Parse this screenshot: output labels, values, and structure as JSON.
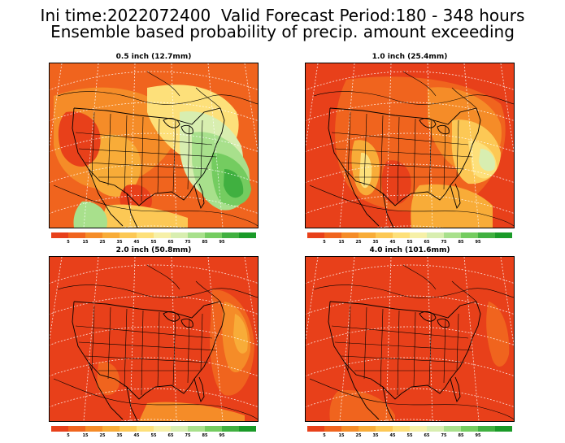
{
  "header": {
    "line1": "Ini time:2022072400  Valid Forecast Period:180 - 348 hours",
    "line2": "Ensemble based probability of precip. amount exceeding"
  },
  "panels": [
    {
      "title": "0.5 inch (12.7mm)",
      "dominant_color": "#e85a1c",
      "green_coverage": "high"
    },
    {
      "title": "1.0 inch (25.4mm)",
      "dominant_color": "#e84a18",
      "green_coverage": "low"
    },
    {
      "title": "2.0 inch (50.8mm)",
      "dominant_color": "#e8401a",
      "green_coverage": "none"
    },
    {
      "title": "4.0 inch (101.6mm)",
      "dominant_color": "#e8401a",
      "green_coverage": "none"
    }
  ],
  "colorbar": {
    "colors": [
      "#e8401a",
      "#f0641e",
      "#f58c28",
      "#f8ac38",
      "#fcc855",
      "#fde07a",
      "#f6f0a8",
      "#d8eeb0",
      "#a8e08c",
      "#74cc60",
      "#40b040",
      "#1a9a28"
    ],
    "labels": [
      "5",
      "15",
      "25",
      "35",
      "45",
      "55",
      "65",
      "75",
      "85",
      "95"
    ]
  },
  "icons": {
    "map": "contour-probability-map-icon"
  }
}
